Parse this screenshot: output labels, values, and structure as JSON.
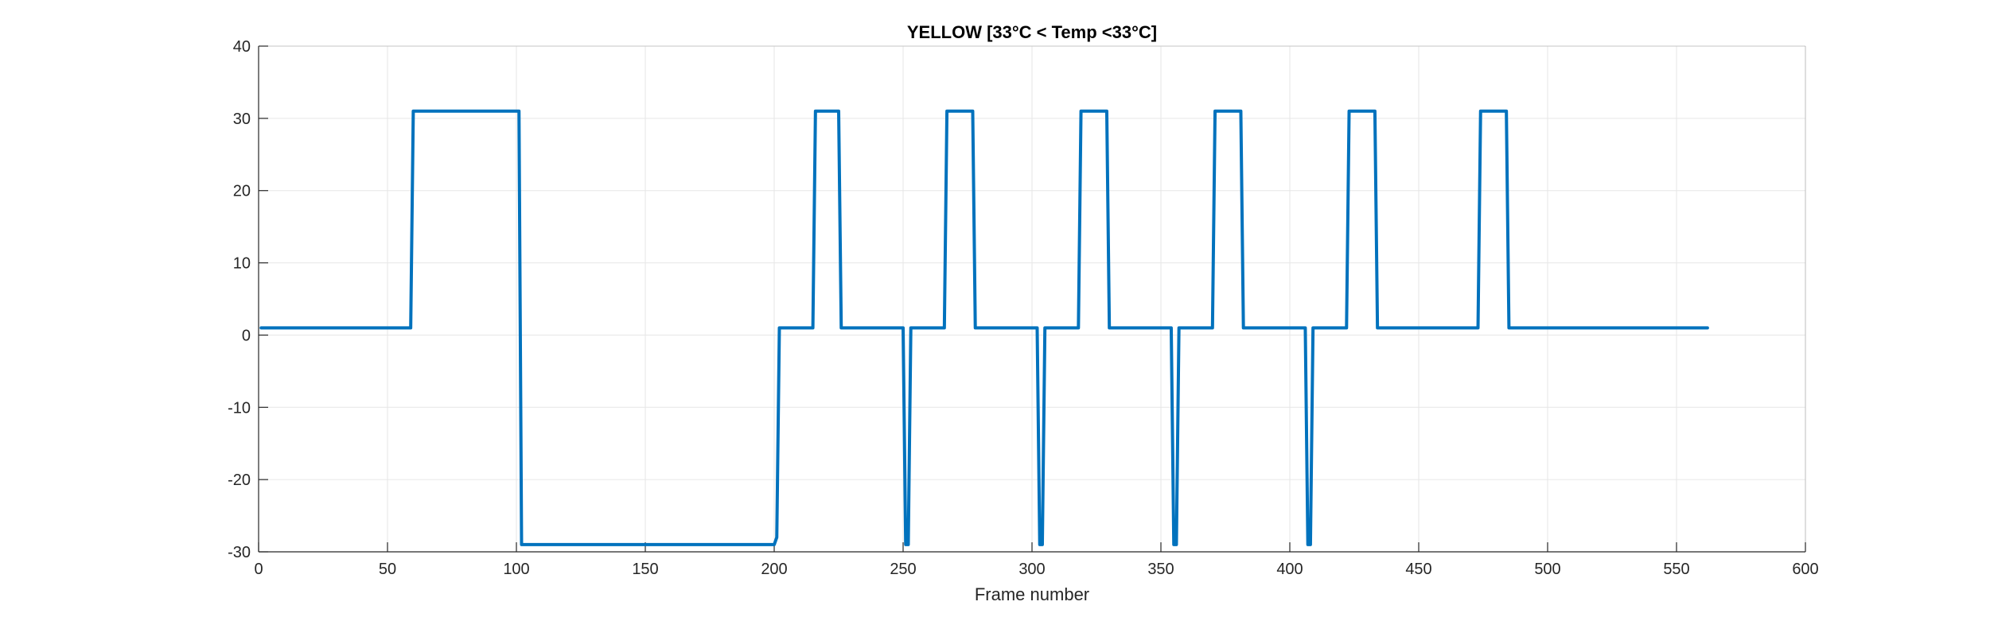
{
  "chart_data": {
    "type": "line",
    "title": "YELLOW [33°C < Temp <33°C]",
    "xlabel": "Frame number",
    "ylabel": "",
    "xlim": [
      0,
      600
    ],
    "ylim": [
      -30,
      40
    ],
    "xticks": [
      0,
      50,
      100,
      150,
      200,
      250,
      300,
      350,
      400,
      450,
      500,
      550,
      600
    ],
    "yticks": [
      -30,
      -20,
      -10,
      0,
      10,
      20,
      30,
      40
    ],
    "grid": true,
    "series": [
      {
        "color": "#0072BD",
        "x": [
          1,
          59,
          60,
          101,
          102,
          200,
          201,
          202,
          215,
          216,
          225,
          226,
          249,
          250,
          251,
          252,
          253,
          254,
          266,
          267,
          277,
          278,
          301,
          302,
          303,
          304,
          305,
          306,
          318,
          319,
          329,
          330,
          353,
          354,
          355,
          356,
          357,
          358,
          370,
          371,
          381,
          382,
          405,
          406,
          407,
          408,
          409,
          410,
          422,
          423,
          433,
          434,
          473,
          474,
          484,
          485,
          562
        ],
        "y": [
          1,
          1,
          31,
          31,
          -29,
          -29,
          -28,
          1,
          1,
          31,
          31,
          1,
          1,
          1,
          -29,
          -29,
          1,
          1,
          1,
          31,
          31,
          1,
          1,
          1,
          -29,
          -29,
          1,
          1,
          1,
          31,
          31,
          1,
          1,
          1,
          -29,
          -29,
          1,
          1,
          1,
          31,
          31,
          1,
          1,
          1,
          -29,
          -29,
          1,
          1,
          1,
          31,
          31,
          1,
          1,
          31,
          31,
          1,
          1
        ]
      }
    ]
  }
}
